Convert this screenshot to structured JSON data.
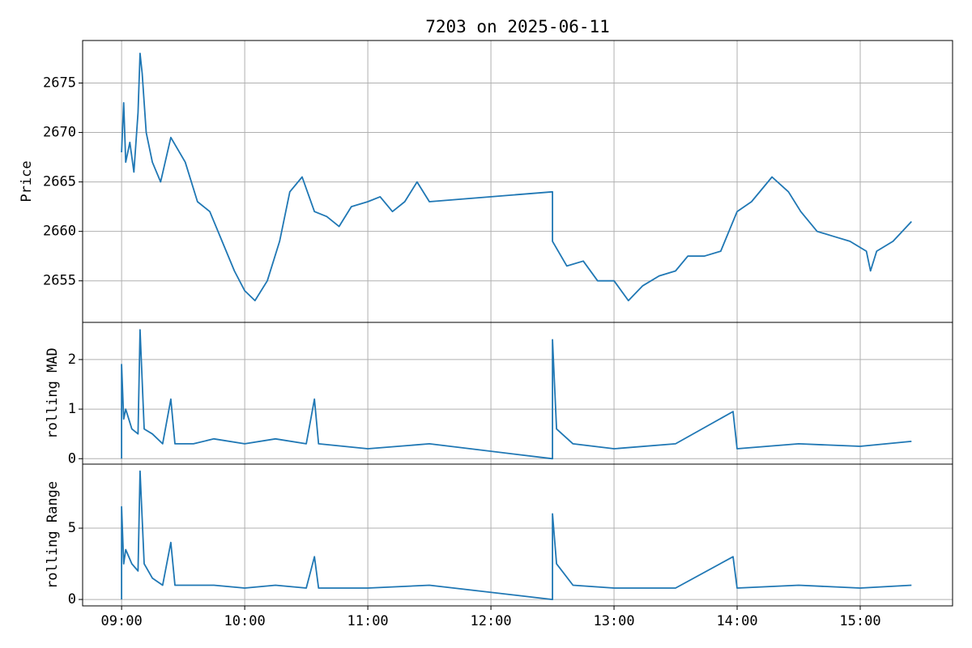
{
  "chart_data": [
    {
      "type": "line",
      "title": "7203 on 2025-06-11",
      "ylabel": "Price",
      "x": [
        "09:00",
        "09:01",
        "09:02",
        "09:04",
        "09:06",
        "09:08",
        "09:09",
        "09:10",
        "09:12",
        "09:15",
        "09:19",
        "09:24",
        "09:31",
        "09:37",
        "09:43",
        "09:49",
        "09:55",
        "10:00",
        "10:05",
        "10:11",
        "10:17",
        "10:22",
        "10:28",
        "10:34",
        "10:40",
        "10:46",
        "10:52",
        "11:00",
        "11:06",
        "11:12",
        "11:18",
        "11:24",
        "11:30",
        "12:30",
        "12:30",
        "12:37",
        "12:45",
        "12:52",
        "13:00",
        "13:07",
        "13:14",
        "13:22",
        "13:30",
        "13:36",
        "13:44",
        "13:52",
        "14:00",
        "14:07",
        "14:17",
        "14:25",
        "14:31",
        "14:39",
        "14:47",
        "14:55",
        "15:03",
        "15:05",
        "15:08",
        "15:16",
        "15:25"
      ],
      "series": [
        {
          "name": "Price",
          "color": "#1f77b4",
          "values": [
            2668,
            2673,
            2667,
            2669,
            2666,
            2672,
            2678,
            2676,
            2670,
            2667,
            2665,
            2669.5,
            2667,
            2663,
            2662,
            2659,
            2656,
            2654,
            2653,
            2655,
            2659,
            2664,
            2665.5,
            2662,
            2661.5,
            2660.5,
            2662.5,
            2663,
            2663.5,
            2662,
            2663,
            2665,
            2663,
            2664,
            2659,
            2656.5,
            2657,
            2655,
            2655,
            2653,
            2654.5,
            2655.5,
            2656,
            2657.5,
            2657.5,
            2658,
            2662,
            2663,
            2665.5,
            2664,
            2662,
            2660,
            2659.5,
            2659,
            2658,
            2656,
            2658,
            2659,
            2661
          ]
        }
      ],
      "xlim": [
        "08:41",
        "15:45"
      ],
      "xticks": [
        "09:00",
        "10:00",
        "11:00",
        "12:00",
        "13:00",
        "14:00",
        "15:00"
      ],
      "ylim": [
        2650.8,
        2679.3
      ],
      "yticks": [
        2655,
        2660,
        2665,
        2670,
        2675
      ],
      "grid": true
    },
    {
      "type": "line",
      "ylabel": "rolling MAD",
      "x": [
        "09:00",
        "09:00",
        "09:01",
        "09:02",
        "09:05",
        "09:08",
        "09:09",
        "09:11",
        "09:15",
        "09:20",
        "09:24",
        "09:26",
        "09:35",
        "09:45",
        "10:00",
        "10:15",
        "10:30",
        "10:34",
        "10:36",
        "11:00",
        "11:30",
        "12:30",
        "12:30",
        "12:32",
        "12:40",
        "13:00",
        "13:30",
        "13:58",
        "14:00",
        "14:30",
        "15:00",
        "15:25"
      ],
      "series": [
        {
          "name": "rolling MAD",
          "color": "#1f77b4",
          "values": [
            0,
            1.9,
            0.8,
            1.0,
            0.6,
            0.5,
            2.6,
            0.6,
            0.5,
            0.3,
            1.2,
            0.3,
            0.3,
            0.4,
            0.3,
            0.4,
            0.3,
            1.2,
            0.3,
            0.2,
            0.3,
            0,
            2.4,
            0.6,
            0.3,
            0.2,
            0.3,
            0.95,
            0.2,
            0.3,
            0.25,
            0.35
          ]
        }
      ],
      "xlim": [
        "08:41",
        "15:45"
      ],
      "xticks": [
        "09:00",
        "10:00",
        "11:00",
        "12:00",
        "13:00",
        "14:00",
        "15:00"
      ],
      "ylim": [
        -0.11,
        2.75
      ],
      "yticks": [
        0,
        1,
        2
      ],
      "grid": true
    },
    {
      "type": "line",
      "ylabel": "rolling Range",
      "x": [
        "09:00",
        "09:00",
        "09:01",
        "09:02",
        "09:05",
        "09:08",
        "09:09",
        "09:11",
        "09:15",
        "09:20",
        "09:24",
        "09:26",
        "09:35",
        "09:45",
        "10:00",
        "10:15",
        "10:30",
        "10:34",
        "10:36",
        "11:00",
        "11:30",
        "12:30",
        "12:30",
        "12:32",
        "12:40",
        "13:00",
        "13:30",
        "13:58",
        "14:00",
        "14:30",
        "15:00",
        "15:25"
      ],
      "series": [
        {
          "name": "rolling Range",
          "color": "#1f77b4",
          "values": [
            0,
            6.5,
            2.5,
            3.5,
            2.5,
            2,
            9,
            2.5,
            1.5,
            1,
            4,
            1,
            1,
            1,
            0.8,
            1,
            0.8,
            3,
            0.8,
            0.8,
            1,
            0,
            6,
            2.5,
            1,
            0.8,
            0.8,
            3,
            0.8,
            1,
            0.8,
            1
          ]
        }
      ],
      "xlim": [
        "08:41",
        "15:45"
      ],
      "xticks": [
        "09:00",
        "10:00",
        "11:00",
        "12:00",
        "13:00",
        "14:00",
        "15:00"
      ],
      "ylim": [
        -0.45,
        9.49
      ],
      "yticks": [
        0,
        5
      ],
      "grid": true
    }
  ]
}
